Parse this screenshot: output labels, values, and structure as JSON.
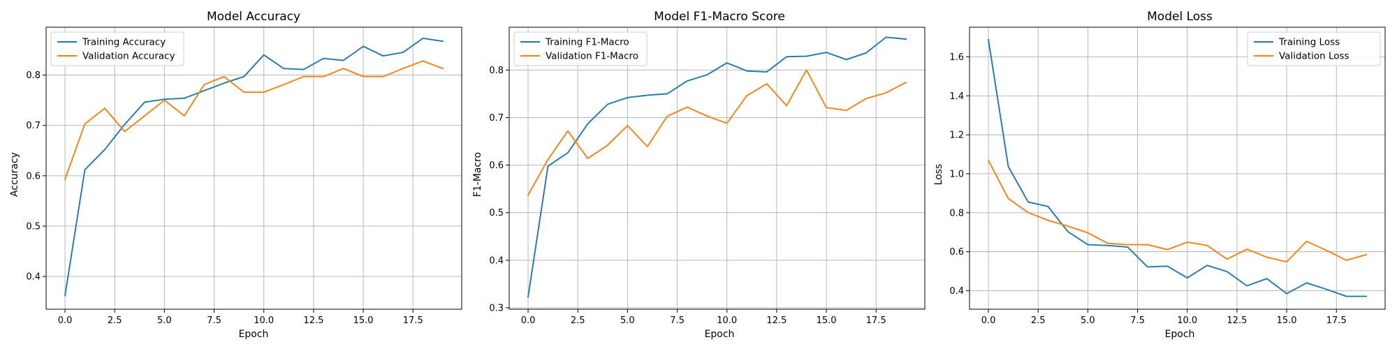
{
  "colors": {
    "training": "#1f77b4",
    "validation": "#ff7f0e",
    "grid": "#b0b0b0"
  },
  "chart_data": [
    {
      "type": "line",
      "title": "Model Accuracy",
      "xlabel": "Epoch",
      "ylabel": "Accuracy",
      "xlim": [
        -0.95,
        19.95
      ],
      "ylim": [
        0.335,
        0.895
      ],
      "xticks": [
        0,
        2.5,
        5,
        7.5,
        10,
        12.5,
        15,
        17.5
      ],
      "xtick_labels": [
        "0.0",
        "2.5",
        "5.0",
        "7.5",
        "10.0",
        "12.5",
        "15.0",
        "17.5"
      ],
      "yticks": [
        0.4,
        0.5,
        0.6,
        0.7,
        0.8
      ],
      "ytick_labels": [
        "0.4",
        "0.5",
        "0.6",
        "0.7",
        "0.8"
      ],
      "grid": true,
      "legend": "upper-left",
      "x": [
        0,
        1,
        2,
        3,
        4,
        5,
        6,
        7,
        8,
        9,
        10,
        11,
        12,
        13,
        14,
        15,
        16,
        17,
        18,
        19
      ],
      "series": [
        {
          "name": "Training Accuracy",
          "color": "#1f77b4",
          "values": [
            0.362,
            0.612,
            0.652,
            0.702,
            0.746,
            0.752,
            0.754,
            0.769,
            0.784,
            0.797,
            0.84,
            0.813,
            0.811,
            0.833,
            0.829,
            0.857,
            0.838,
            0.845,
            0.873,
            0.867
          ]
        },
        {
          "name": "Validation Accuracy",
          "color": "#ff7f0e",
          "values": [
            0.593,
            0.703,
            0.734,
            0.688,
            0.719,
            0.75,
            0.719,
            0.781,
            0.797,
            0.766,
            0.766,
            0.781,
            0.797,
            0.797,
            0.813,
            0.797,
            0.797,
            0.813,
            0.828,
            0.813
          ]
        }
      ]
    },
    {
      "type": "line",
      "title": "Model F1-Macro Score",
      "xlabel": "Epoch",
      "ylabel": "F1-Macro",
      "xlim": [
        -0.95,
        19.95
      ],
      "ylim": [
        0.297,
        0.89
      ],
      "xticks": [
        0,
        2.5,
        5,
        7.5,
        10,
        12.5,
        15,
        17.5
      ],
      "xtick_labels": [
        "0.0",
        "2.5",
        "5.0",
        "7.5",
        "10.0",
        "12.5",
        "15.0",
        "17.5"
      ],
      "yticks": [
        0.3,
        0.4,
        0.5,
        0.6,
        0.7,
        0.8
      ],
      "ytick_labels": [
        "0.3",
        "0.4",
        "0.5",
        "0.6",
        "0.7",
        "0.8"
      ],
      "grid": true,
      "legend": "upper-left",
      "x": [
        0,
        1,
        2,
        3,
        4,
        5,
        6,
        7,
        8,
        9,
        10,
        11,
        12,
        13,
        14,
        15,
        16,
        17,
        18,
        19
      ],
      "series": [
        {
          "name": "Training F1-Macro",
          "color": "#1f77b4",
          "values": [
            0.323,
            0.598,
            0.626,
            0.687,
            0.728,
            0.742,
            0.747,
            0.75,
            0.777,
            0.79,
            0.815,
            0.798,
            0.796,
            0.828,
            0.829,
            0.837,
            0.822,
            0.836,
            0.869,
            0.865
          ]
        },
        {
          "name": "Validation F1-Macro",
          "color": "#ff7f0e",
          "values": [
            0.537,
            0.612,
            0.672,
            0.614,
            0.642,
            0.683,
            0.639,
            0.703,
            0.722,
            0.703,
            0.688,
            0.746,
            0.771,
            0.725,
            0.8,
            0.721,
            0.715,
            0.74,
            0.752,
            0.774
          ]
        }
      ]
    },
    {
      "type": "line",
      "title": "Model Loss",
      "xlabel": "Epoch",
      "ylabel": "Loss",
      "xlim": [
        -0.95,
        19.95
      ],
      "ylim": [
        0.305,
        1.752
      ],
      "xticks": [
        0,
        2.5,
        5,
        7.5,
        10,
        12.5,
        15,
        17.5
      ],
      "xtick_labels": [
        "0.0",
        "2.5",
        "5.0",
        "7.5",
        "10.0",
        "12.5",
        "15.0",
        "17.5"
      ],
      "yticks": [
        0.4,
        0.6,
        0.8,
        1.0,
        1.2,
        1.4,
        1.6
      ],
      "ytick_labels": [
        "0.4",
        "0.6",
        "0.8",
        "1.0",
        "1.2",
        "1.4",
        "1.6"
      ],
      "grid": true,
      "legend": "upper-right",
      "x": [
        0,
        1,
        2,
        3,
        4,
        5,
        6,
        7,
        8,
        9,
        10,
        11,
        12,
        13,
        14,
        15,
        16,
        17,
        18,
        19
      ],
      "series": [
        {
          "name": "Training Loss",
          "color": "#1f77b4",
          "values": [
            1.688,
            1.037,
            0.855,
            0.832,
            0.703,
            0.636,
            0.632,
            0.624,
            0.522,
            0.526,
            0.466,
            0.53,
            0.498,
            0.425,
            0.462,
            0.385,
            0.44,
            0.407,
            0.371,
            0.371
          ]
        },
        {
          "name": "Validation Loss",
          "color": "#ff7f0e",
          "values": [
            1.068,
            0.873,
            0.801,
            0.761,
            0.731,
            0.697,
            0.643,
            0.636,
            0.636,
            0.611,
            0.649,
            0.632,
            0.562,
            0.613,
            0.572,
            0.548,
            0.653,
            0.607,
            0.556,
            0.585
          ]
        }
      ]
    }
  ]
}
